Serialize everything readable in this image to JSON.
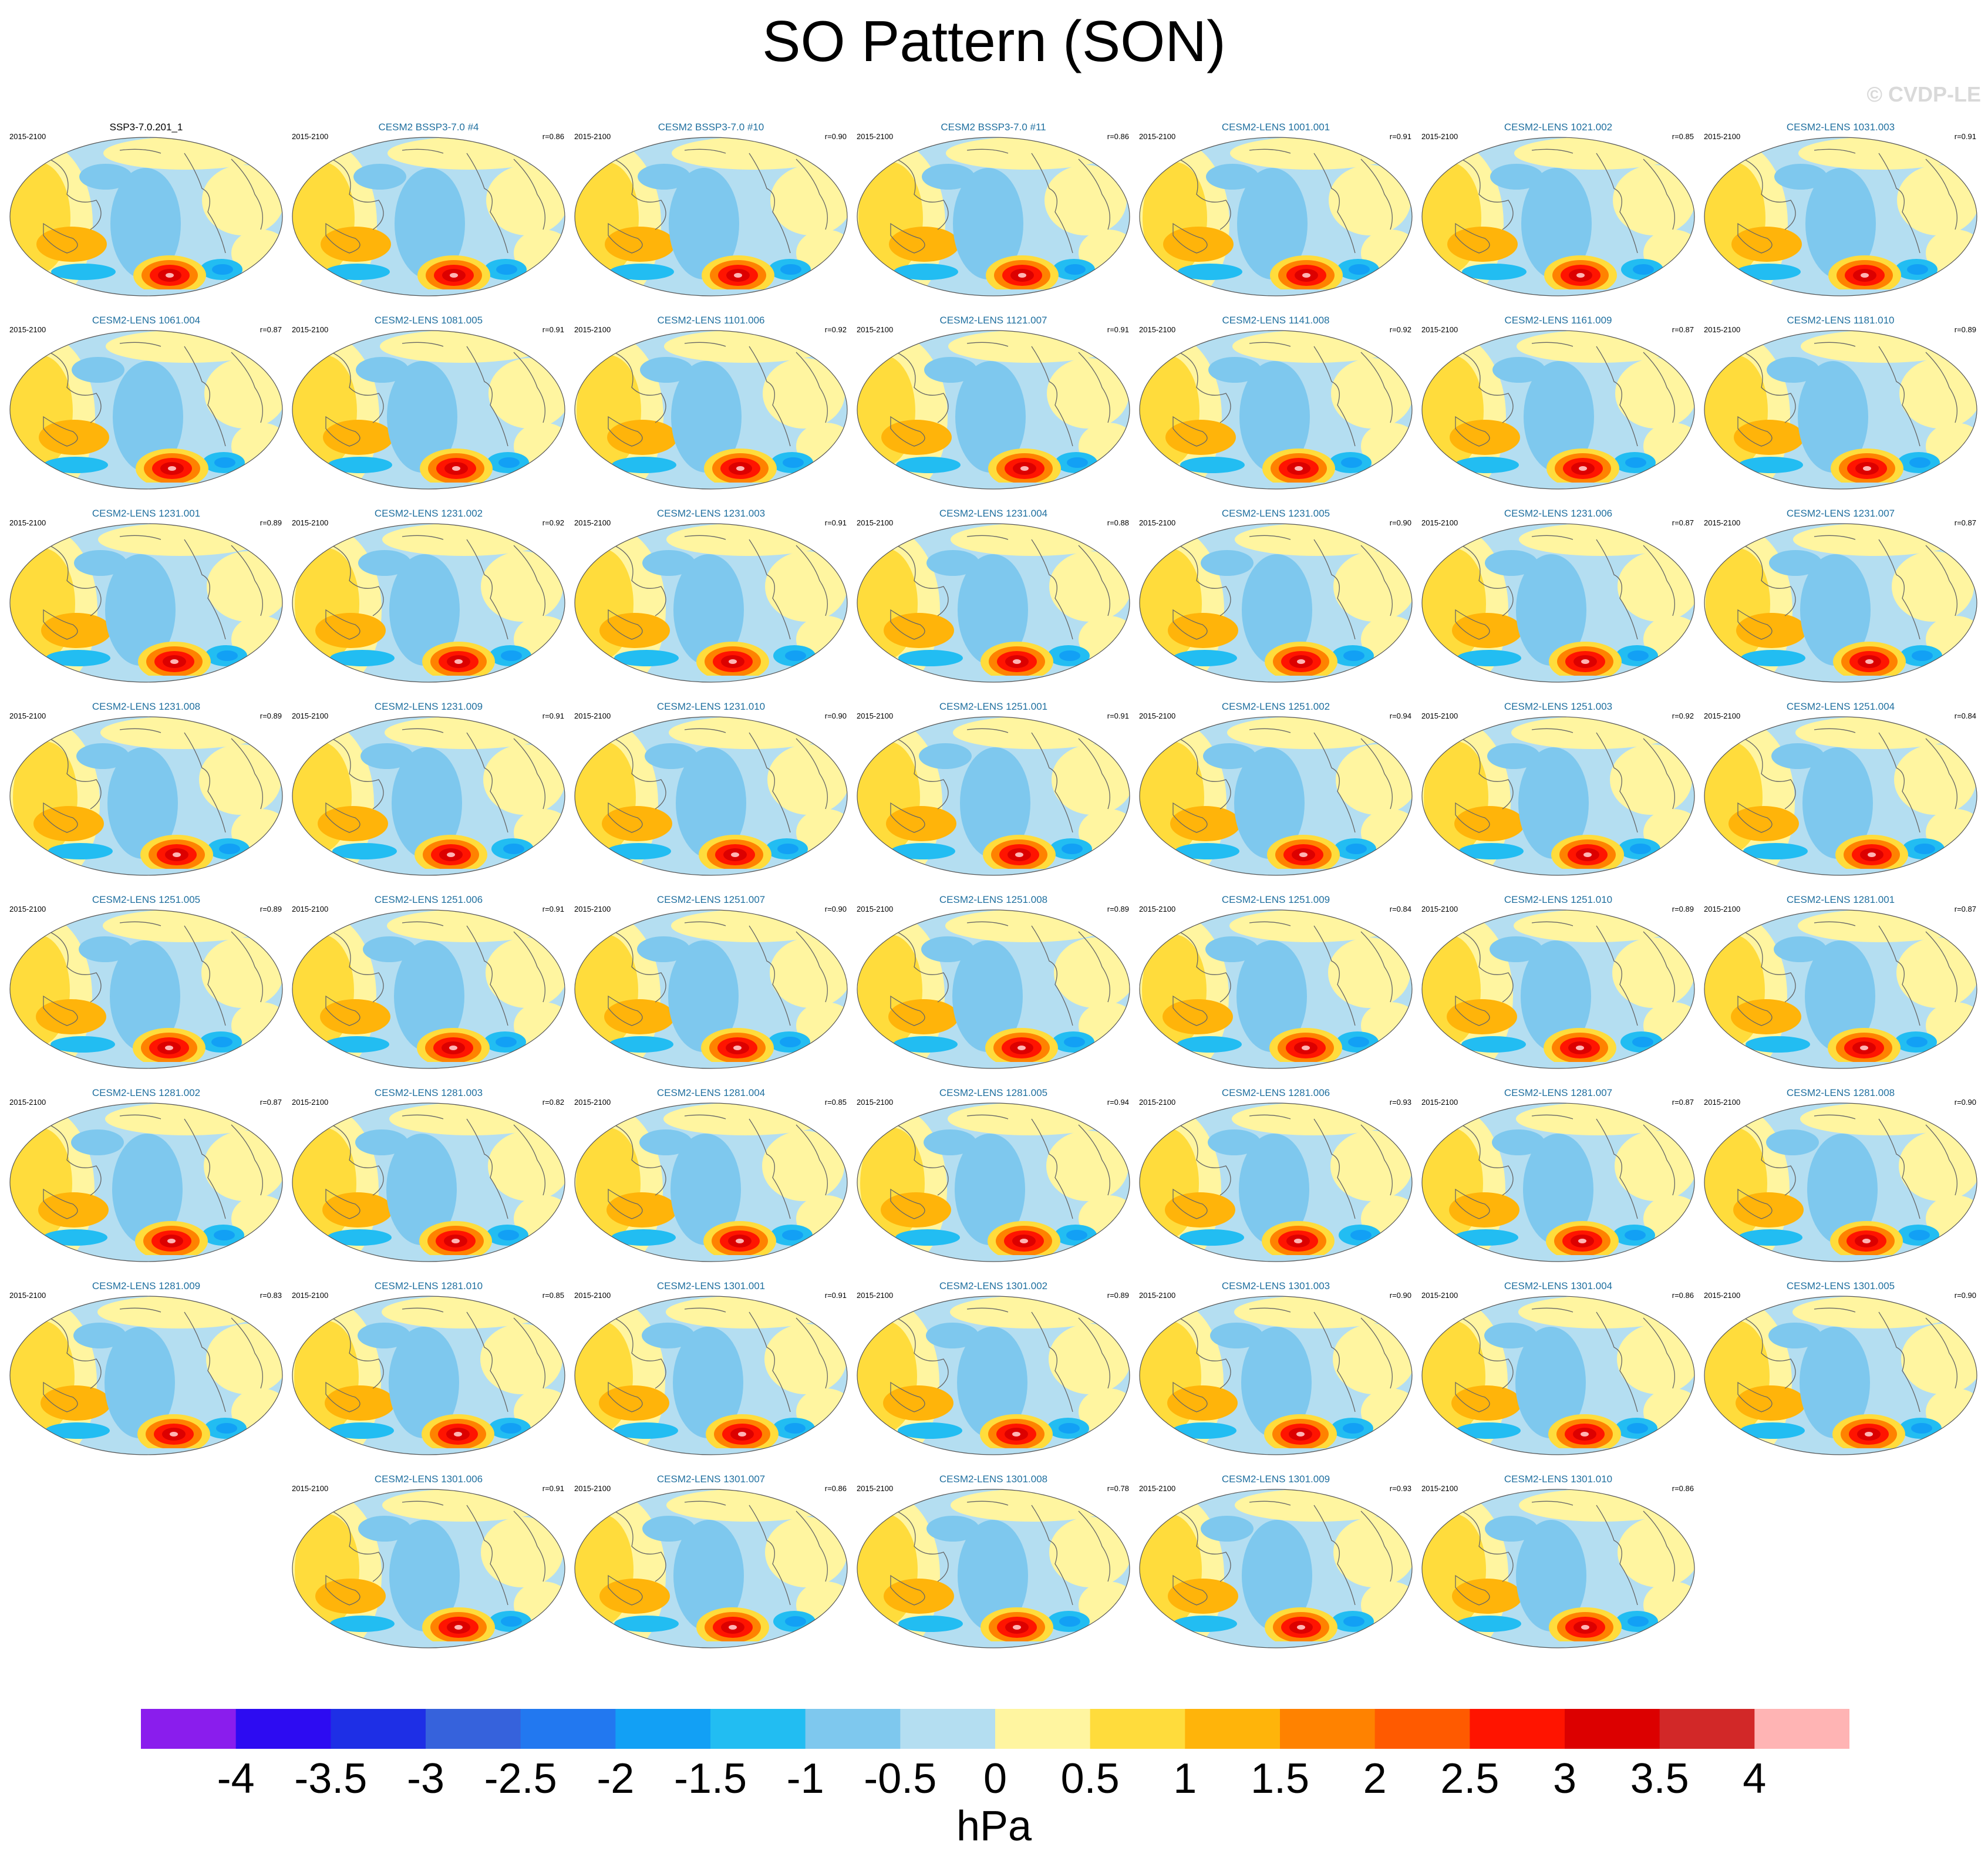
{
  "title": "SO Pattern (SON)",
  "copyright": "© CVDP-LE",
  "period": "2015-2100",
  "units": "hPa",
  "panels": [
    {
      "name": "SSP3-7.0.201_1",
      "r": "",
      "obs": true
    },
    {
      "name": "CESM2 BSSP3-7.0 #4",
      "r": "r=0.86"
    },
    {
      "name": "CESM2 BSSP3-7.0 #10",
      "r": "r=0.90"
    },
    {
      "name": "CESM2 BSSP3-7.0 #11",
      "r": "r=0.86"
    },
    {
      "name": "CESM2-LENS 1001.001",
      "r": "r=0.91"
    },
    {
      "name": "CESM2-LENS 1021.002",
      "r": "r=0.85"
    },
    {
      "name": "CESM2-LENS 1031.003",
      "r": "r=0.91"
    },
    {
      "name": "CESM2-LENS 1061.004",
      "r": "r=0.87"
    },
    {
      "name": "CESM2-LENS 1081.005",
      "r": "r=0.91"
    },
    {
      "name": "CESM2-LENS 1101.006",
      "r": "r=0.92"
    },
    {
      "name": "CESM2-LENS 1121.007",
      "r": "r=0.91"
    },
    {
      "name": "CESM2-LENS 1141.008",
      "r": "r=0.92"
    },
    {
      "name": "CESM2-LENS 1161.009",
      "r": "r=0.87"
    },
    {
      "name": "CESM2-LENS 1181.010",
      "r": "r=0.89"
    },
    {
      "name": "CESM2-LENS 1231.001",
      "r": "r=0.89"
    },
    {
      "name": "CESM2-LENS 1231.002",
      "r": "r=0.92"
    },
    {
      "name": "CESM2-LENS 1231.003",
      "r": "r=0.91"
    },
    {
      "name": "CESM2-LENS 1231.004",
      "r": "r=0.88"
    },
    {
      "name": "CESM2-LENS 1231.005",
      "r": "r=0.90"
    },
    {
      "name": "CESM2-LENS 1231.006",
      "r": "r=0.87"
    },
    {
      "name": "CESM2-LENS 1231.007",
      "r": "r=0.87"
    },
    {
      "name": "CESM2-LENS 1231.008",
      "r": "r=0.89"
    },
    {
      "name": "CESM2-LENS 1231.009",
      "r": "r=0.91"
    },
    {
      "name": "CESM2-LENS 1231.010",
      "r": "r=0.90"
    },
    {
      "name": "CESM2-LENS 1251.001",
      "r": "r=0.91"
    },
    {
      "name": "CESM2-LENS 1251.002",
      "r": "r=0.94"
    },
    {
      "name": "CESM2-LENS 1251.003",
      "r": "r=0.92"
    },
    {
      "name": "CESM2-LENS 1251.004",
      "r": "r=0.84"
    },
    {
      "name": "CESM2-LENS 1251.005",
      "r": "r=0.89"
    },
    {
      "name": "CESM2-LENS 1251.006",
      "r": "r=0.91"
    },
    {
      "name": "CESM2-LENS 1251.007",
      "r": "r=0.90"
    },
    {
      "name": "CESM2-LENS 1251.008",
      "r": "r=0.89"
    },
    {
      "name": "CESM2-LENS 1251.009",
      "r": "r=0.84"
    },
    {
      "name": "CESM2-LENS 1251.010",
      "r": "r=0.89"
    },
    {
      "name": "CESM2-LENS 1281.001",
      "r": "r=0.87"
    },
    {
      "name": "CESM2-LENS 1281.002",
      "r": "r=0.87"
    },
    {
      "name": "CESM2-LENS 1281.003",
      "r": "r=0.82"
    },
    {
      "name": "CESM2-LENS 1281.004",
      "r": "r=0.85"
    },
    {
      "name": "CESM2-LENS 1281.005",
      "r": "r=0.94"
    },
    {
      "name": "CESM2-LENS 1281.006",
      "r": "r=0.93"
    },
    {
      "name": "CESM2-LENS 1281.007",
      "r": "r=0.87"
    },
    {
      "name": "CESM2-LENS 1281.008",
      "r": "r=0.90"
    },
    {
      "name": "CESM2-LENS 1281.009",
      "r": "r=0.83"
    },
    {
      "name": "CESM2-LENS 1281.010",
      "r": "r=0.85"
    },
    {
      "name": "CESM2-LENS 1301.001",
      "r": "r=0.91"
    },
    {
      "name": "CESM2-LENS 1301.002",
      "r": "r=0.89"
    },
    {
      "name": "CESM2-LENS 1301.003",
      "r": "r=0.90"
    },
    {
      "name": "CESM2-LENS 1301.004",
      "r": "r=0.86"
    },
    {
      "name": "CESM2-LENS 1301.005",
      "r": "r=0.90"
    },
    {
      "name": "CESM2-LENS 1301.006",
      "r": "r=0.91"
    },
    {
      "name": "CESM2-LENS 1301.007",
      "r": "r=0.86"
    },
    {
      "name": "CESM2-LENS 1301.008",
      "r": "r=0.78"
    },
    {
      "name": "CESM2-LENS 1301.009",
      "r": "r=0.93"
    },
    {
      "name": "CESM2-LENS 1301.010",
      "r": "r=0.86"
    }
  ],
  "chart_data": {
    "type": "heatmap",
    "title": "SO Pattern (SON)",
    "colorbar": {
      "units": "hPa",
      "tick_labels": [
        "-4",
        "-3.5",
        "-3",
        "-2.5",
        "-2",
        "-1.5",
        "-1",
        "-0.5",
        "0",
        "0.5",
        "1",
        "1.5",
        "2",
        "2.5",
        "3",
        "3.5",
        "4"
      ],
      "colors": [
        "#8a1ded",
        "#2d0bf2",
        "#1e2fe6",
        "#3662dc",
        "#2278f0",
        "#12a0f5",
        "#22bdf2",
        "#7ec8ee",
        "#b4def1",
        "#fff5a0",
        "#ffdc3c",
        "#ffb40a",
        "#ff8200",
        "#ff5a00",
        "#ff1400",
        "#dc0000",
        "#d22828",
        "#ffb4b4"
      ]
    },
    "layout": {
      "columns": 7,
      "rows": 8
    }
  }
}
